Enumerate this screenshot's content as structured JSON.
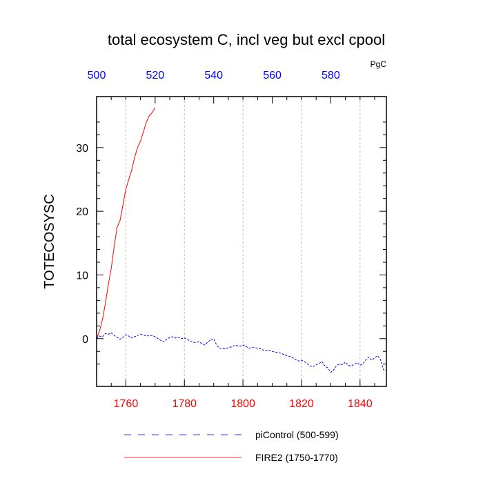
{
  "chart_data": {
    "type": "line",
    "title": "total ecosystem C, incl veg but excl cpool",
    "units": "PgC",
    "ylabel": "TOTECOSYSC",
    "xlim": [
      1750,
      1849
    ],
    "ylim": [
      -7.5,
      38
    ],
    "x_ticks": [
      1760,
      1780,
      1800,
      1820,
      1840
    ],
    "top_axis": {
      "ticks": [
        500,
        520,
        540,
        560,
        580
      ],
      "range": [
        500,
        599
      ]
    },
    "y_ticks": [
      0,
      10,
      20,
      30
    ],
    "grid": "vertical-dashed",
    "colors": {
      "bottom_axis": "#ff0000",
      "top_axis": "#0000ff",
      "fire2": "#ff0000",
      "picontrol": "#0000ff"
    },
    "legend": {
      "placement": "bottom"
    },
    "series": [
      {
        "name": "piControl (500-599)",
        "style": "dashed",
        "color": "#0000ff",
        "x": [
          1750,
          1751,
          1752,
          1753,
          1754,
          1755,
          1756,
          1757,
          1758,
          1759,
          1760,
          1761,
          1762,
          1763,
          1764,
          1765,
          1766,
          1767,
          1768,
          1769,
          1770,
          1771,
          1772,
          1773,
          1774,
          1775,
          1776,
          1777,
          1778,
          1779,
          1780,
          1781,
          1782,
          1783,
          1784,
          1785,
          1786,
          1787,
          1788,
          1789,
          1790,
          1791,
          1792,
          1793,
          1794,
          1795,
          1796,
          1797,
          1798,
          1799,
          1800,
          1801,
          1802,
          1803,
          1804,
          1805,
          1806,
          1807,
          1808,
          1809,
          1810,
          1811,
          1812,
          1813,
          1814,
          1815,
          1816,
          1817,
          1818,
          1819,
          1820,
          1821,
          1822,
          1823,
          1824,
          1825,
          1826,
          1827,
          1828,
          1829,
          1830,
          1831,
          1832,
          1833,
          1834,
          1835,
          1836,
          1837,
          1838,
          1839,
          1840,
          1841,
          1842,
          1843,
          1844,
          1845,
          1846,
          1847,
          1848,
          1849
        ],
        "values": [
          0.0,
          0.4,
          0.3,
          0.8,
          0.7,
          0.9,
          0.5,
          0.2,
          -0.1,
          0.2,
          0.6,
          0.4,
          0.1,
          0.3,
          0.5,
          0.7,
          0.6,
          0.4,
          0.5,
          0.5,
          0.3,
          0.0,
          -0.3,
          -0.5,
          -0.1,
          0.2,
          0.3,
          0.1,
          0.2,
          0.0,
          0.1,
          -0.1,
          -0.4,
          -0.6,
          -0.6,
          -0.5,
          -0.8,
          -1.0,
          -0.5,
          -0.2,
          0.0,
          -1.0,
          -1.5,
          -1.6,
          -1.6,
          -1.4,
          -1.3,
          -1.1,
          -1.1,
          -1.2,
          -1.0,
          -1.2,
          -1.5,
          -1.4,
          -1.4,
          -1.5,
          -1.6,
          -1.8,
          -1.9,
          -1.8,
          -2.0,
          -2.1,
          -2.2,
          -2.3,
          -2.5,
          -2.7,
          -2.8,
          -3.0,
          -3.3,
          -3.5,
          -3.4,
          -3.6,
          -4.0,
          -4.3,
          -4.4,
          -4.1,
          -3.9,
          -3.6,
          -4.3,
          -4.6,
          -5.3,
          -4.9,
          -4.2,
          -4.0,
          -4.1,
          -3.7,
          -4.2,
          -4.3,
          -4.0,
          -3.8,
          -4.2,
          -3.9,
          -3.3,
          -2.9,
          -3.4,
          -3.0,
          -2.7,
          -3.3,
          -4.9,
          -5.0
        ]
      },
      {
        "name": "FIRE2 (1750-1770)",
        "style": "solid",
        "color": "#ff0000",
        "x": [
          1750,
          1751,
          1752,
          1753,
          1754,
          1755,
          1756,
          1757,
          1758,
          1759,
          1760,
          1761,
          1762,
          1763,
          1764,
          1765,
          1766,
          1767,
          1768,
          1769,
          1770
        ],
        "values": [
          0.0,
          1.2,
          3.0,
          5.5,
          8.5,
          11.0,
          14.5,
          17.5,
          18.5,
          21.0,
          23.5,
          25.0,
          26.5,
          28.5,
          30.0,
          31.0,
          32.5,
          34.0,
          35.0,
          35.5,
          36.3
        ]
      }
    ]
  }
}
